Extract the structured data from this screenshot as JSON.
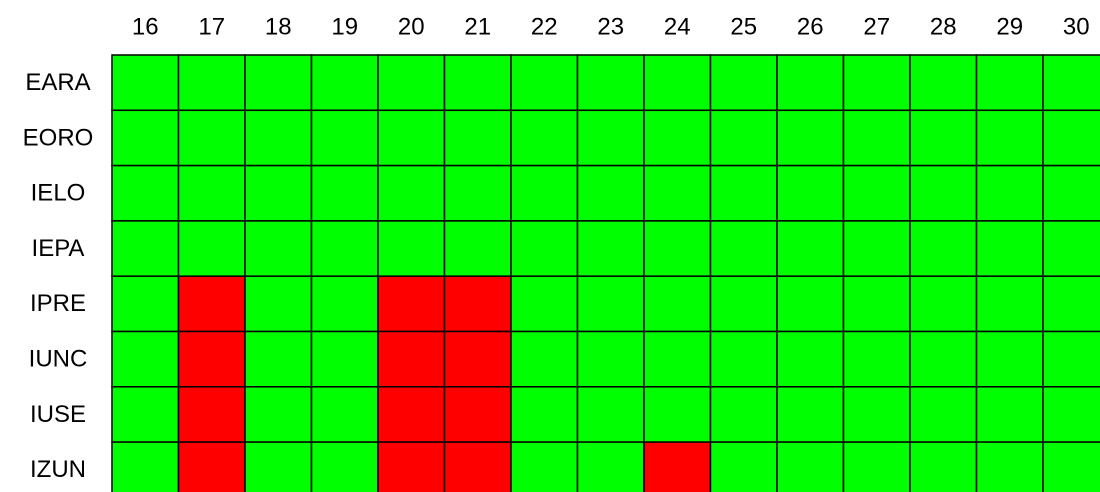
{
  "columns": [
    "16",
    "17",
    "18",
    "19",
    "20",
    "21",
    "22",
    "23",
    "24",
    "25",
    "26",
    "27",
    "28",
    "29",
    "30"
  ],
  "rows": [
    {
      "label": "EARA",
      "cells": [
        "#00ff00",
        "#00ff00",
        "#00ff00",
        "#00ff00",
        "#00ff00",
        "#00ff00",
        "#00ff00",
        "#00ff00",
        "#00ff00",
        "#00ff00",
        "#00ff00",
        "#00ff00",
        "#00ff00",
        "#00ff00",
        "#00ff00"
      ]
    },
    {
      "label": "EORO",
      "cells": [
        "#00ff00",
        "#00ff00",
        "#00ff00",
        "#00ff00",
        "#00ff00",
        "#00ff00",
        "#00ff00",
        "#00ff00",
        "#00ff00",
        "#00ff00",
        "#00ff00",
        "#00ff00",
        "#00ff00",
        "#00ff00",
        "#00ff00"
      ]
    },
    {
      "label": "IELO",
      "cells": [
        "#00ff00",
        "#00ff00",
        "#00ff00",
        "#00ff00",
        "#00ff00",
        "#00ff00",
        "#00ff00",
        "#00ff00",
        "#00ff00",
        "#00ff00",
        "#00ff00",
        "#00ff00",
        "#00ff00",
        "#00ff00",
        "#00ff00"
      ]
    },
    {
      "label": "IEPA",
      "cells": [
        "#00ff00",
        "#00ff00",
        "#00ff00",
        "#00ff00",
        "#00ff00",
        "#00ff00",
        "#00ff00",
        "#00ff00",
        "#00ff00",
        "#00ff00",
        "#00ff00",
        "#00ff00",
        "#00ff00",
        "#00ff00",
        "#00ff00"
      ]
    },
    {
      "label": "IPRE",
      "cells": [
        "#00ff00",
        "#ff0000",
        "#00ff00",
        "#00ff00",
        "#ff0000",
        "#ff0000",
        "#00ff00",
        "#00ff00",
        "#00ff00",
        "#00ff00",
        "#00ff00",
        "#00ff00",
        "#00ff00",
        "#00ff00",
        "#00ff00"
      ]
    },
    {
      "label": "IUNC",
      "cells": [
        "#00ff00",
        "#ff0000",
        "#00ff00",
        "#00ff00",
        "#ff0000",
        "#ff0000",
        "#00ff00",
        "#00ff00",
        "#00ff00",
        "#00ff00",
        "#00ff00",
        "#00ff00",
        "#00ff00",
        "#00ff00",
        "#00ff00"
      ]
    },
    {
      "label": "IUSE",
      "cells": [
        "#00ff00",
        "#ff0000",
        "#00ff00",
        "#00ff00",
        "#ff0000",
        "#ff0000",
        "#00ff00",
        "#00ff00",
        "#00ff00",
        "#00ff00",
        "#00ff00",
        "#00ff00",
        "#00ff00",
        "#00ff00",
        "#00ff00"
      ]
    },
    {
      "label": "IZUN",
      "cells": [
        "#00ff00",
        "#ff0000",
        "#00ff00",
        "#00ff00",
        "#ff0000",
        "#ff0000",
        "#00ff00",
        "#00ff00",
        "#ff0000",
        "#00ff00",
        "#00ff00",
        "#00ff00",
        "#00ff00",
        "#00ff00",
        "#00ff00"
      ]
    }
  ]
}
